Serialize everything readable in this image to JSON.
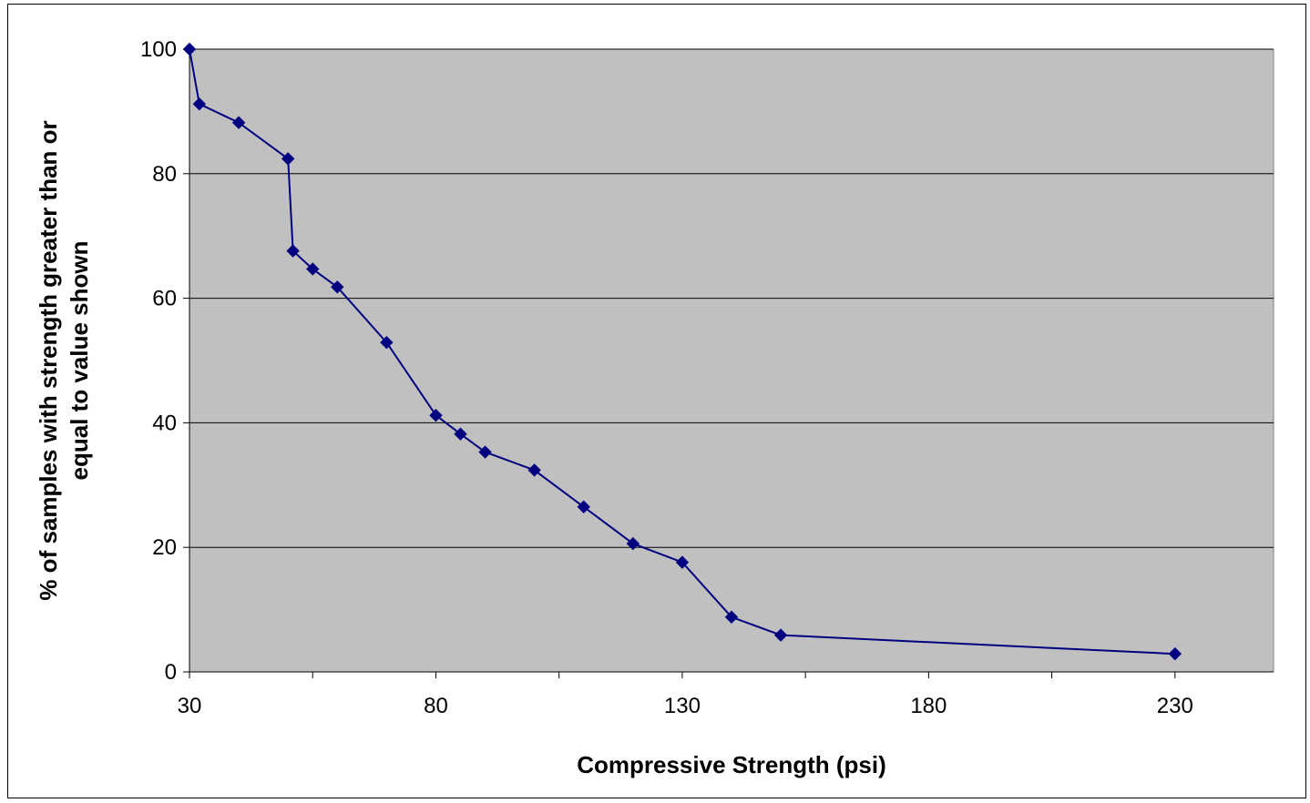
{
  "chart_data": {
    "type": "line",
    "title": "",
    "xlabel": "Compressive Strength (psi)",
    "ylabel_lines": [
      "% of samples with strength greater than or",
      "equal to value shown"
    ],
    "xlim": [
      30,
      250
    ],
    "ylim": [
      0,
      100
    ],
    "x_ticks": [
      30,
      80,
      130,
      180,
      230
    ],
    "y_ticks": [
      0,
      20,
      40,
      60,
      80,
      100
    ],
    "grid": "horizontal",
    "colors": {
      "plot_area": "#c0c0c0",
      "series": "#000080",
      "grid": "#000000"
    },
    "series": [
      {
        "marker": "diamond",
        "x": [
          30,
          32,
          40,
          50,
          51,
          55,
          60,
          70,
          80,
          85,
          90,
          100,
          110,
          120,
          130,
          140,
          150,
          230
        ],
        "y": [
          100,
          91.2,
          88.2,
          82.4,
          67.6,
          64.7,
          61.8,
          52.9,
          41.2,
          38.2,
          35.3,
          32.4,
          26.5,
          20.6,
          17.6,
          8.8,
          5.9,
          2.9
        ]
      }
    ]
  }
}
